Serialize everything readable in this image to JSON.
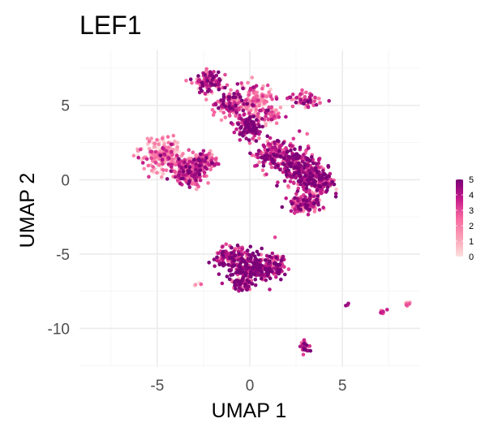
{
  "chart_data": {
    "type": "scatter",
    "title": "LEF1",
    "xlabel": "UMAP 1",
    "ylabel": "UMAP 2",
    "xlim": [
      -9.2,
      9.2
    ],
    "ylim": [
      -12.6,
      8.7
    ],
    "xticks": [
      -5,
      0,
      5
    ],
    "yticks": [
      -10,
      -5,
      0,
      5
    ],
    "xtick_labels": [
      "-5",
      "0",
      "5"
    ],
    "ytick_labels": [
      "-10",
      "-5",
      "0",
      "5"
    ],
    "grid": true,
    "color_scale": {
      "min": 0,
      "max": 5,
      "colors": [
        "#fde0dd",
        "#fa9fb5",
        "#f768a1",
        "#c51b8a",
        "#7a0177"
      ],
      "ticks": [
        0,
        1,
        2,
        3,
        4,
        5
      ],
      "tick_labels": [
        "0",
        "1",
        "2",
        "3",
        "4",
        "5"
      ],
      "legend_position": "right"
    },
    "clusters": [
      {
        "cx": -4.7,
        "cy": 1.6,
        "rx": 0.9,
        "ry": 1.0,
        "n": 220,
        "mean": 1.4
      },
      {
        "cx": -3.3,
        "cy": 0.6,
        "rx": 0.9,
        "ry": 0.8,
        "n": 240,
        "mean": 2.6
      },
      {
        "cx": -2.4,
        "cy": 1.3,
        "rx": 0.6,
        "ry": 0.5,
        "n": 100,
        "mean": 2.4
      },
      {
        "cx": -2.2,
        "cy": 6.6,
        "rx": 0.6,
        "ry": 0.7,
        "n": 130,
        "mean": 3.0
      },
      {
        "cx": -1.0,
        "cy": 5.0,
        "rx": 0.7,
        "ry": 0.9,
        "n": 120,
        "mean": 3.2
      },
      {
        "cx": 0.3,
        "cy": 5.4,
        "rx": 0.8,
        "ry": 0.9,
        "n": 120,
        "mean": 2.0
      },
      {
        "cx": 1.0,
        "cy": 4.3,
        "rx": 0.6,
        "ry": 0.5,
        "n": 60,
        "mean": 1.6
      },
      {
        "cx": 0.0,
        "cy": 3.6,
        "rx": 0.6,
        "ry": 0.7,
        "n": 130,
        "mean": 4.0
      },
      {
        "cx": 1.2,
        "cy": 1.7,
        "rx": 0.9,
        "ry": 0.9,
        "n": 160,
        "mean": 3.4
      },
      {
        "cx": 2.5,
        "cy": 0.9,
        "rx": 0.9,
        "ry": 1.2,
        "n": 200,
        "mean": 3.8
      },
      {
        "cx": 3.6,
        "cy": 0.0,
        "rx": 0.8,
        "ry": 1.0,
        "n": 220,
        "mean": 3.7
      },
      {
        "cx": 3.0,
        "cy": -1.6,
        "rx": 0.8,
        "ry": 0.5,
        "n": 120,
        "mean": 3.2
      },
      {
        "cx": 3.0,
        "cy": 5.3,
        "rx": 0.9,
        "ry": 0.5,
        "n": 55,
        "mean": 3.0
      },
      {
        "cx": -1.0,
        "cy": -5.2,
        "rx": 0.8,
        "ry": 0.6,
        "n": 120,
        "mean": 3.6
      },
      {
        "cx": 0.1,
        "cy": -6.0,
        "rx": 1.2,
        "ry": 0.9,
        "n": 240,
        "mean": 4.2
      },
      {
        "cx": 1.3,
        "cy": -5.8,
        "rx": 0.6,
        "ry": 0.6,
        "n": 90,
        "mean": 3.6
      },
      {
        "cx": -0.5,
        "cy": -7.0,
        "rx": 0.5,
        "ry": 0.4,
        "n": 50,
        "mean": 3.8
      },
      {
        "cx": 3.0,
        "cy": -11.2,
        "rx": 0.22,
        "ry": 0.4,
        "n": 28,
        "mean": 4.0
      },
      {
        "cx": 7.1,
        "cy": -8.9,
        "rx": 0.3,
        "ry": 0.12,
        "n": 8,
        "mean": 3.2
      },
      {
        "cx": 8.5,
        "cy": -8.3,
        "rx": 0.15,
        "ry": 0.15,
        "n": 7,
        "mean": 0.9
      },
      {
        "cx": 5.3,
        "cy": -8.4,
        "rx": 0.1,
        "ry": 0.1,
        "n": 3,
        "mean": 4.5
      },
      {
        "cx": -2.8,
        "cy": -7.0,
        "rx": 0.25,
        "ry": 0.1,
        "n": 4,
        "mean": 1.2
      }
    ]
  }
}
